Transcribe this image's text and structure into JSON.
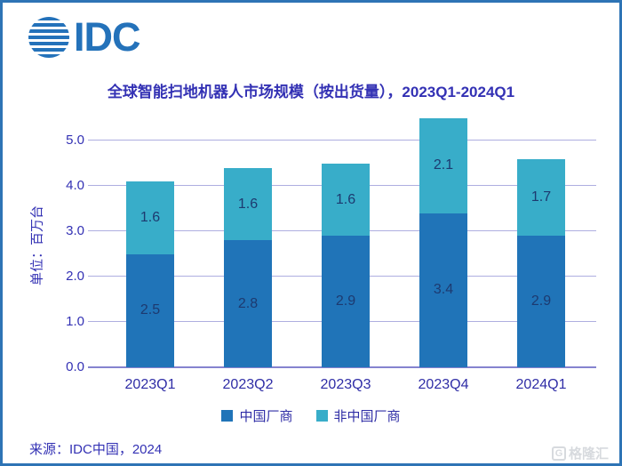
{
  "brand": {
    "logo_text": "IDC"
  },
  "header": {
    "title": "全球智能扫地机器人市场规模（按出货量），2023Q1-2024Q1"
  },
  "chart_data": {
    "type": "bar",
    "stacked": true,
    "title": "全球智能扫地机器人市场规模（按出货量），2023Q1-2024Q1",
    "categories": [
      "2023Q1",
      "2023Q2",
      "2023Q3",
      "2023Q4",
      "2024Q1"
    ],
    "series": [
      {
        "name": "中国厂商",
        "color": "#2074b8",
        "values": [
          2.5,
          2.8,
          2.9,
          3.4,
          2.9
        ]
      },
      {
        "name": "非中国厂商",
        "color": "#38adc9",
        "values": [
          1.6,
          1.6,
          1.6,
          2.1,
          1.7
        ]
      }
    ],
    "xlabel": "",
    "ylabel": "单位：百万台",
    "yticks": [
      0,
      1,
      2,
      3,
      4,
      5
    ],
    "ytick_labels": [
      "0.0",
      "1.0",
      "2.0",
      "3.0",
      "4.0",
      "5.0"
    ],
    "ylim": [
      0,
      5.5
    ],
    "grid": true,
    "value_labels": true,
    "legend_position": "bottom"
  },
  "footer": {
    "source": "来源：IDC中国，2024",
    "watermark_icon": "G",
    "watermark": "格隆汇"
  },
  "colors": {
    "border": "#2e74b5",
    "brand_blue": "#2472ba",
    "ink": "#3331b4",
    "gridline": "#aeaee0",
    "axis_line": "#8583cf",
    "series_china": "#2074b8",
    "series_non_china": "#38adc9",
    "value_label": "#1d3a70",
    "watermark_gray": "#d7dade"
  }
}
